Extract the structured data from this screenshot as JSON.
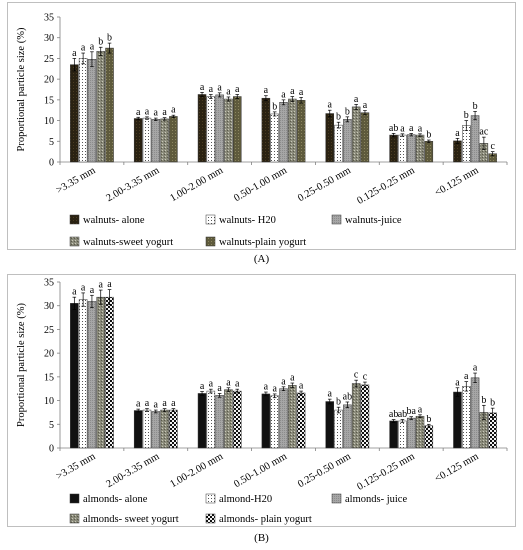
{
  "panel_labels": [
    "(A)",
    "(B)"
  ],
  "colors": {
    "axis": "#808080",
    "grid": "#d9d9d9",
    "frame": "#bfbfbf",
    "text": "#000000"
  },
  "chart_data": [
    {
      "type": "bar",
      "panel": "(A)",
      "ylabel": "Proportional particle size (%)",
      "xlabel": "",
      "ylim": [
        0,
        35
      ],
      "yticks": [
        0,
        5,
        10,
        15,
        20,
        25,
        30,
        35
      ],
      "grid": false,
      "legend_position": "bottom",
      "categories": [
        ">3.35 mm",
        "2.00-3.35 mm",
        "1.00-2.00 mm",
        "0.50-1.00 mm",
        "0.25-0.50 mm",
        "0.125-0.25 mm",
        "<0.125 mm"
      ],
      "series": [
        {
          "name": "walnuts- alone",
          "pattern": "dark",
          "values": [
            23.5,
            10.5,
            16.3,
            15.4,
            11.7,
            6.5,
            5.1
          ],
          "errors": [
            1.5,
            0.3,
            0.5,
            0.6,
            0.8,
            0.4,
            0.6
          ],
          "letters": [
            "a",
            "a",
            "a",
            "a",
            "a",
            "ab",
            "a"
          ]
        },
        {
          "name": "walnuts- H20",
          "pattern": "dots",
          "values": [
            25.0,
            10.6,
            15.8,
            11.6,
            8.9,
            6.5,
            8.8
          ],
          "errors": [
            1.3,
            0.3,
            0.5,
            0.5,
            0.7,
            0.3,
            1.2
          ],
          "letters": [
            "a",
            "a",
            "a",
            "b",
            "b",
            "a",
            "b"
          ]
        },
        {
          "name": "walnuts-juice",
          "pattern": "gray",
          "values": [
            24.8,
            10.3,
            16.2,
            14.4,
            10.3,
            6.6,
            11.2
          ],
          "errors": [
            1.8,
            0.3,
            0.5,
            0.6,
            0.6,
            0.3,
            1.0
          ],
          "letters": [
            "a",
            "a",
            "a",
            "a",
            "b",
            "a",
            "b"
          ]
        },
        {
          "name": "walnuts-sweet yogurt",
          "pattern": "speckle",
          "values": [
            26.7,
            10.4,
            15.2,
            15.2,
            13.3,
            6.5,
            4.5
          ],
          "errors": [
            1.0,
            0.3,
            0.5,
            0.6,
            0.6,
            0.3,
            1.5
          ],
          "letters": [
            "b",
            "a",
            "a",
            "a",
            "a",
            "a",
            "ac"
          ]
        },
        {
          "name": "walnuts-plain yogurt",
          "pattern": "olive",
          "values": [
            27.5,
            11.0,
            15.8,
            14.9,
            11.9,
            5.0,
            2.0
          ],
          "errors": [
            1.2,
            0.3,
            0.5,
            0.7,
            0.5,
            0.3,
            0.5
          ],
          "letters": [
            "b",
            "a",
            "a",
            "a",
            "a",
            "b",
            "c"
          ]
        }
      ]
    },
    {
      "type": "bar",
      "panel": "(B)",
      "ylabel": "Proportional particle size (%)",
      "xlabel": "",
      "ylim": [
        0,
        35
      ],
      "yticks": [
        0,
        5,
        10,
        15,
        20,
        25,
        30,
        35
      ],
      "grid": false,
      "legend_position": "bottom",
      "categories": [
        ">3.35 mm",
        "2.00-3.35 mm",
        "1.00-2.00 mm",
        "0.50-1.00 mm",
        "0.25-0.50 mm",
        "0.125-0.25 mm",
        "<0.125 mm"
      ],
      "series": [
        {
          "name": "almonds- alone",
          "pattern": "black",
          "values": [
            30.5,
            7.9,
            11.5,
            11.4,
            9.8,
            5.7,
            11.8
          ],
          "errors": [
            1.3,
            0.3,
            0.4,
            0.4,
            0.5,
            0.3,
            0.9
          ],
          "letters": [
            "a",
            "a",
            "a",
            "a",
            "a",
            "ab",
            "a"
          ]
        },
        {
          "name": "almond-H20",
          "pattern": "dots",
          "values": [
            31.3,
            8.0,
            12.0,
            11.0,
            8.0,
            5.7,
            13.0
          ],
          "errors": [
            1.4,
            0.3,
            0.4,
            0.4,
            0.6,
            0.3,
            1.0
          ],
          "letters": [
            "a",
            "a",
            "a",
            "a",
            "b",
            "ab",
            "a"
          ]
        },
        {
          "name": "almonds- juice",
          "pattern": "gray",
          "values": [
            30.9,
            7.7,
            11.1,
            12.5,
            9.1,
            6.3,
            14.8
          ],
          "errors": [
            1.3,
            0.3,
            0.4,
            0.4,
            0.6,
            0.3,
            1.0
          ],
          "letters": [
            "a",
            "a",
            "a",
            "a",
            "ab",
            "ba",
            "a"
          ]
        },
        {
          "name": "almonds- sweet yogurt",
          "pattern": "speckle",
          "values": [
            31.8,
            8.0,
            12.3,
            13.2,
            13.6,
            6.7,
            7.5
          ],
          "errors": [
            1.5,
            0.3,
            0.4,
            0.5,
            0.7,
            0.3,
            1.5
          ],
          "letters": [
            "a",
            "a",
            "a",
            "a",
            "c",
            "a",
            "b"
          ]
        },
        {
          "name": "almonds- plain yogurt",
          "pattern": "checker",
          "values": [
            31.8,
            8.0,
            12.0,
            11.6,
            13.3,
            4.7,
            7.4
          ],
          "errors": [
            1.6,
            0.3,
            0.4,
            0.4,
            0.6,
            0.3,
            1.0
          ],
          "letters": [
            "a",
            "a",
            "a",
            "a",
            "c",
            "b",
            "b"
          ]
        }
      ]
    }
  ]
}
